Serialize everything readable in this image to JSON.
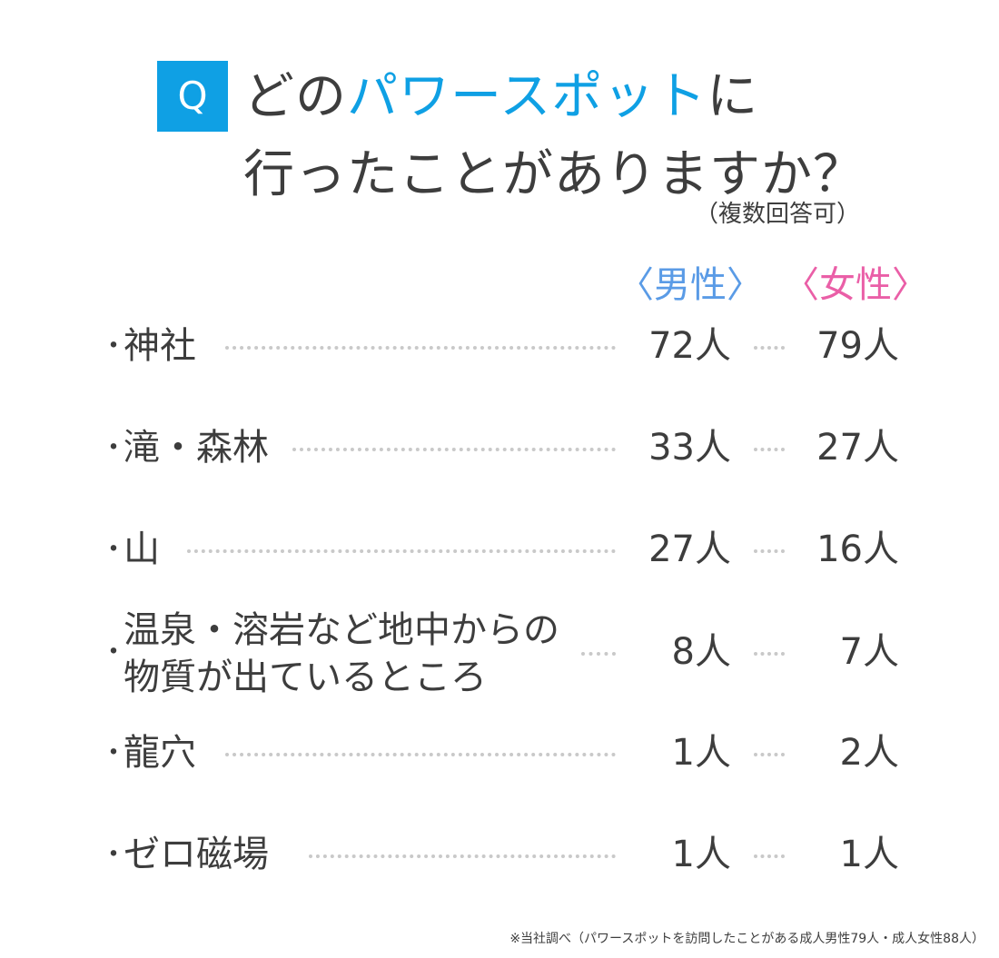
{
  "header": {
    "badge": "Q",
    "title_part1": "どの",
    "title_accent": "パワースポット",
    "title_part2": "に",
    "title_line2": "行ったことがありますか？",
    "note": "（複数回答可）"
  },
  "legend": {
    "male": "〈男性〉",
    "female": "〈女性〉"
  },
  "colors": {
    "accent": "#0fa0e4",
    "male": "#5a9be6",
    "female": "#ea5fa7",
    "text": "#3d3d3d"
  },
  "chart_data": {
    "type": "table",
    "columns": [
      "男性",
      "女性"
    ],
    "rows": [
      {
        "bullet": "・",
        "label": "神社",
        "male": "72人",
        "female": "79人"
      },
      {
        "bullet": "・",
        "label": "滝・森林",
        "male": "33人",
        "female": "27人"
      },
      {
        "bullet": "・",
        "label": "山",
        "male": "27人",
        "female": "16人"
      },
      {
        "bullet": "・",
        "label": "温泉・溶岩など地中からの",
        "label2": "物質が出ているところ",
        "male": "8人",
        "female": "7人"
      },
      {
        "bullet": "・",
        "label": "龍穴",
        "male": "1人",
        "female": "2人"
      },
      {
        "bullet": "・",
        "label": "ゼロ磁場",
        "male": "1人",
        "female": "1人"
      }
    ]
  },
  "footnote": "※当社調べ（パワースポットを訪問したことがある成人男性79人・成人女性88人）"
}
